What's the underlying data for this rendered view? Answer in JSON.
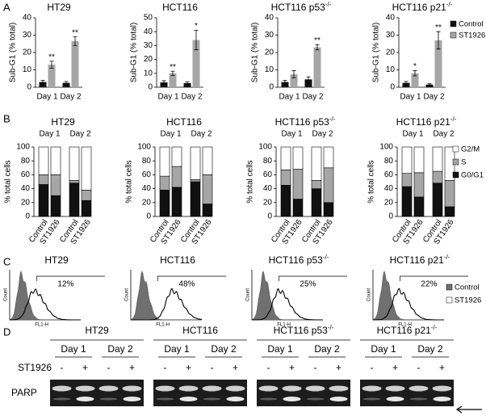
{
  "panel_labels": [
    "A",
    "B",
    "C",
    "D"
  ],
  "chart_data": [
    {
      "type": "bar",
      "title": "HT29",
      "y_label": "Sub-G1 (% total)",
      "categories": [
        "Day 1",
        "Day 2"
      ],
      "series": [
        {
          "color": "#111111",
          "values": [
            3,
            2.5
          ],
          "errors": [
            1,
            0.8
          ]
        },
        {
          "color": "#a6a6a6",
          "values": [
            13,
            26.5
          ],
          "errors": [
            2,
            2.5
          ]
        }
      ],
      "significance": [
        "**",
        "**"
      ],
      "ylim": [
        0,
        40
      ],
      "yticks": [
        0,
        10,
        20,
        30,
        40
      ]
    },
    {
      "type": "bar",
      "title": "HCT116",
      "y_label": "Sub-G1 (% total)",
      "categories": [
        "Day 1",
        "Day 2"
      ],
      "series": [
        {
          "color": "#111111",
          "values": [
            3.5,
            3
          ],
          "errors": [
            1.2,
            1
          ]
        },
        {
          "color": "#a6a6a6",
          "values": [
            10,
            34
          ],
          "errors": [
            1.5,
            7
          ]
        }
      ],
      "significance": [
        "**",
        "*"
      ],
      "ylim": [
        0,
        50
      ],
      "yticks": [
        0,
        10,
        20,
        30,
        40,
        50
      ]
    },
    {
      "type": "bar",
      "title": "HCT116 p53",
      "title_sup": "-/-",
      "y_label": "Sub-G1 (% total)",
      "categories": [
        "Day 1",
        "Day 2"
      ],
      "series": [
        {
          "color": "#111111",
          "values": [
            3,
            4.5
          ],
          "errors": [
            1,
            1.5
          ]
        },
        {
          "color": "#a6a6a6",
          "values": [
            7.5,
            23
          ],
          "errors": [
            2,
            1.5
          ]
        }
      ],
      "significance": [
        null,
        "**"
      ],
      "ylim": [
        0,
        40
      ],
      "yticks": [
        0,
        10,
        20,
        30,
        40
      ]
    },
    {
      "type": "bar",
      "title": "HCT116 p21",
      "title_sup": "-/-",
      "y_label": "Sub-G1 (% total)",
      "categories": [
        "Day 1",
        "Day 2"
      ],
      "series": [
        {
          "name": "Control",
          "color": "#111111",
          "values": [
            2.5,
            1.5
          ],
          "errors": [
            0.8,
            0.5
          ]
        },
        {
          "name": "ST1926",
          "color": "#a6a6a6",
          "values": [
            8,
            27
          ],
          "errors": [
            1.5,
            5
          ]
        }
      ],
      "significance": [
        "*",
        "**"
      ],
      "ylim": [
        0,
        40
      ],
      "yticks": [
        0,
        10,
        20,
        30,
        40
      ],
      "legend": "right"
    },
    {
      "type": "stacked_bar",
      "title": "HT29",
      "y_label": "% total cells",
      "groups": [
        "Day 1",
        "Day 2"
      ],
      "categories": [
        "Control",
        "ST1926",
        "Control",
        "ST1926"
      ],
      "series": [
        {
          "color": "#111111",
          "values": [
            46,
            30,
            48,
            23
          ]
        },
        {
          "color": "#a6a6a6",
          "values": [
            14,
            30,
            4,
            15
          ]
        },
        {
          "color": "#ffffff",
          "values": [
            40,
            40,
            48,
            62
          ]
        }
      ],
      "ylim": [
        0,
        100
      ],
      "yticks": [
        0,
        20,
        40,
        60,
        80,
        100
      ]
    },
    {
      "type": "stacked_bar",
      "title": "HCT116",
      "y_label": "% total cells",
      "groups": [
        "Day 1",
        "Day 2"
      ],
      "categories": [
        "Control",
        "ST1926",
        "Control",
        "ST1926"
      ],
      "series": [
        {
          "color": "#111111",
          "values": [
            38,
            42,
            50,
            18
          ]
        },
        {
          "color": "#a6a6a6",
          "values": [
            20,
            30,
            3,
            42
          ]
        },
        {
          "color": "#ffffff",
          "values": [
            42,
            28,
            47,
            40
          ]
        }
      ],
      "ylim": [
        0,
        100
      ],
      "yticks": [
        0,
        20,
        40,
        60,
        80,
        100
      ]
    },
    {
      "type": "stacked_bar",
      "title": "HCT116 p53",
      "title_sup": "-/-",
      "y_label": "% total cells",
      "groups": [
        "Day 1",
        "Day 2"
      ],
      "categories": [
        "Control",
        "ST1926",
        "Control",
        "ST1926"
      ],
      "series": [
        {
          "color": "#111111",
          "values": [
            45,
            25,
            40,
            20
          ]
        },
        {
          "color": "#a6a6a6",
          "values": [
            22,
            43,
            12,
            50
          ]
        },
        {
          "color": "#ffffff",
          "values": [
            33,
            32,
            48,
            30
          ]
        }
      ],
      "ylim": [
        0,
        100
      ],
      "yticks": [
        0,
        20,
        40,
        60,
        80,
        100
      ]
    },
    {
      "type": "stacked_bar",
      "title": "HCT116 p21",
      "title_sup": "-/-",
      "y_label": "% total cells",
      "groups": [
        "Day 1",
        "Day 2"
      ],
      "categories": [
        "Control",
        "ST1926",
        "Control",
        "ST1926"
      ],
      "series": [
        {
          "name": "G0/G1",
          "color": "#111111",
          "values": [
            43,
            28,
            48,
            14
          ]
        },
        {
          "name": "S",
          "color": "#a6a6a6",
          "values": [
            19,
            35,
            17,
            38
          ]
        },
        {
          "name": "G2/M",
          "color": "#ffffff",
          "values": [
            38,
            37,
            35,
            48
          ]
        }
      ],
      "ylim": [
        0,
        100
      ],
      "yticks": [
        0,
        20,
        40,
        60,
        80,
        100
      ],
      "legend": "right"
    }
  ],
  "flow": {
    "y_label": "Count",
    "x_label": "FL1-H",
    "panels": [
      {
        "title": "HT29",
        "percent": "12%"
      },
      {
        "title": "HCT116",
        "percent": "48%"
      },
      {
        "title": "HCT116 p53",
        "title_sup": "-/-",
        "percent": "25%"
      },
      {
        "title": "HCT116 p21",
        "title_sup": "-/-",
        "percent": "22%"
      }
    ],
    "legend": [
      {
        "name": "Control",
        "color": "#707070"
      },
      {
        "name": "ST1926",
        "color": "#ffffff"
      }
    ]
  },
  "blot": {
    "row_label": "ST1926",
    "protein": "PARP",
    "days": [
      "Day 1",
      "Day 2"
    ],
    "treatment": [
      "-",
      "+",
      "-",
      "+"
    ],
    "panels": [
      {
        "title": "HT29"
      },
      {
        "title": "HCT116"
      },
      {
        "title": "HCT116 p53",
        "title_sup": "-/-"
      },
      {
        "title": "HCT116 p21",
        "title_sup": "-/-"
      }
    ]
  }
}
